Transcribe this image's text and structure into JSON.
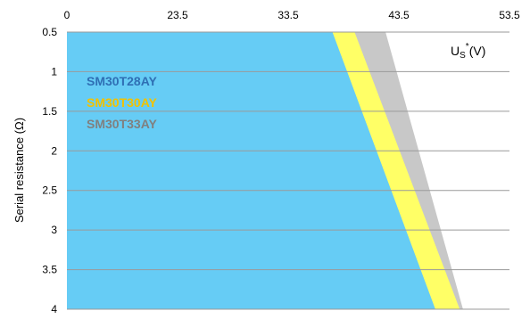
{
  "chart_data": {
    "type": "area",
    "title": "",
    "ylabel": "Serial resistance (Ω)",
    "unit_label": {
      "main": "U",
      "sub": "S",
      "sup": "*",
      "suffix": "(V)"
    },
    "x_ticks": [
      0,
      23.5,
      33.5,
      43.5,
      53.5
    ],
    "x_tick_labels": [
      "0",
      "23.5",
      "33.5",
      "43.5",
      "53.5"
    ],
    "y_ticks": [
      0.5,
      1,
      1.5,
      2,
      2.5,
      3,
      3.5,
      4
    ],
    "y_tick_labels": [
      "0.5",
      "1",
      "1.5",
      "2",
      "2.5",
      "3",
      "3.5",
      "4"
    ],
    "y_inverted": true,
    "ylim": [
      0.5,
      4
    ],
    "grid": true,
    "legend": "top-left",
    "series": [
      {
        "name": "SM30T33AY",
        "color": "#c8c8c8",
        "boundary": [
          [
            42.3,
            0.5
          ],
          [
            45.3,
            2.0
          ],
          [
            49.3,
            4.0
          ]
        ]
      },
      {
        "name": "SM30T30AY",
        "color": "#ffff66",
        "boundary": [
          [
            39.5,
            0.5
          ],
          [
            49.0,
            4.0
          ]
        ]
      },
      {
        "name": "SM30T28AY",
        "color": "#66ccf5",
        "boundary": [
          [
            37.5,
            0.5
          ],
          [
            46.8,
            4.0
          ]
        ]
      }
    ],
    "legend_entries": [
      {
        "name": "SM30T28AY",
        "color": "#2f6fb4"
      },
      {
        "name": "SM30T30AY",
        "color": "#f2c200"
      },
      {
        "name": "SM30T33AY",
        "color": "#808080"
      }
    ]
  }
}
